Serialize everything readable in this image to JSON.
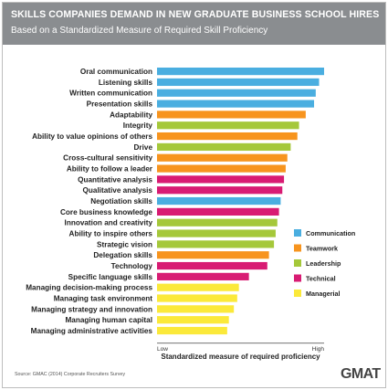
{
  "header": {
    "title": "SKILLS COMPANIES DEMAND IN NEW GRADUATE BUSINESS SCHOOL HIRES",
    "subtitle": "Based on a Standardized Measure of Required Skill Proficiency"
  },
  "chart_data": {
    "type": "bar",
    "orientation": "horizontal",
    "xlabel": "Standardized measure of required proficiency",
    "x_tick_labels": [
      "Low",
      "High"
    ],
    "xlim": [
      0,
      100
    ],
    "grid": false,
    "legend_position": "right",
    "legend": [
      {
        "name": "Communication",
        "color": "#4aaee0"
      },
      {
        "name": "Teamwork",
        "color": "#f7941e"
      },
      {
        "name": "Leadership",
        "color": "#a5c83a"
      },
      {
        "name": "Technical",
        "color": "#d81b73"
      },
      {
        "name": "Managerial",
        "color": "#fbe93a"
      }
    ],
    "categories": [
      {
        "label": "Oral communication",
        "value": 100,
        "group": "Communication"
      },
      {
        "label": "Listening skills",
        "value": 97,
        "group": "Communication"
      },
      {
        "label": "Written communication",
        "value": 95,
        "group": "Communication"
      },
      {
        "label": "Presentation skills",
        "value": 94,
        "group": "Communication"
      },
      {
        "label": "Adaptability",
        "value": 89,
        "group": "Teamwork"
      },
      {
        "label": "Integrity",
        "value": 85,
        "group": "Leadership"
      },
      {
        "label": "Ability to value opinions of others",
        "value": 84,
        "group": "Teamwork"
      },
      {
        "label": "Drive",
        "value": 80,
        "group": "Leadership"
      },
      {
        "label": "Cross-cultural sensitivity",
        "value": 78,
        "group": "Teamwork"
      },
      {
        "label": "Ability to follow a leader",
        "value": 77,
        "group": "Teamwork"
      },
      {
        "label": "Quantitative analysis",
        "value": 76,
        "group": "Technical"
      },
      {
        "label": "Qualitative analysis",
        "value": 75,
        "group": "Technical"
      },
      {
        "label": "Negotiation skills",
        "value": 74,
        "group": "Communication"
      },
      {
        "label": "Core business knowledge",
        "value": 73,
        "group": "Technical"
      },
      {
        "label": "Innovation and creativity",
        "value": 72,
        "group": "Leadership"
      },
      {
        "label": "Ability to inspire others",
        "value": 71,
        "group": "Leadership"
      },
      {
        "label": "Strategic vision",
        "value": 70,
        "group": "Leadership"
      },
      {
        "label": "Delegation skills",
        "value": 67,
        "group": "Teamwork"
      },
      {
        "label": "Technology",
        "value": 66,
        "group": "Technical"
      },
      {
        "label": "Specific language skills",
        "value": 55,
        "group": "Technical"
      },
      {
        "label": "Managing decision-making process",
        "value": 49,
        "group": "Managerial"
      },
      {
        "label": "Managing task environment",
        "value": 48,
        "group": "Managerial"
      },
      {
        "label": "Managing strategy and innovation",
        "value": 46,
        "group": "Managerial"
      },
      {
        "label": "Managing human capital",
        "value": 43,
        "group": "Managerial"
      },
      {
        "label": "Managing administrative activities",
        "value": 42,
        "group": "Managerial"
      }
    ]
  },
  "footer": {
    "source": "Source: GMAC (2014) Corporate Recruiters Survey",
    "logo_text": "GMAT"
  }
}
